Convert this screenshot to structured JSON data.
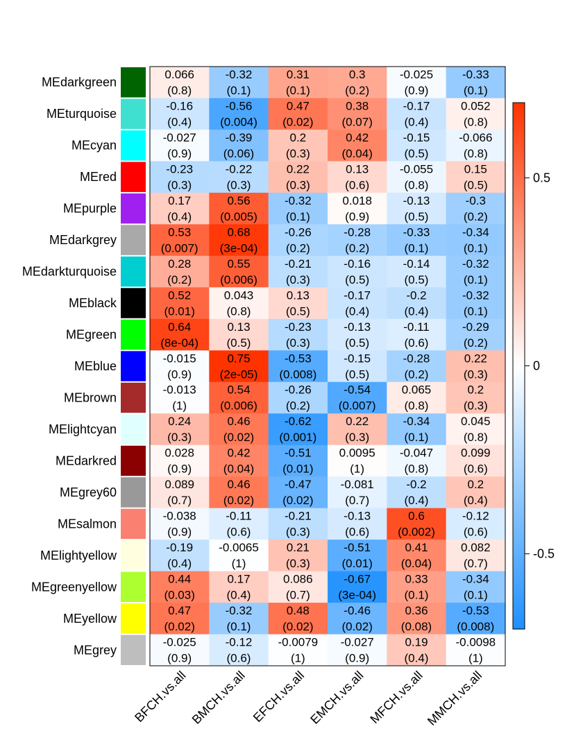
{
  "chart_data": {
    "type": "heatmap",
    "title": "",
    "xlabel": "",
    "ylabel": "",
    "columns": [
      "BFCH.vs.all",
      "BMCH.vs.all",
      "EFCH.vs.all",
      "EMCH.vs.all",
      "MFCH.vs.all",
      "MMCH.vs.all"
    ],
    "rows": [
      {
        "name": "MEdarkgreen",
        "color": "#006400",
        "values": [
          0.066,
          -0.32,
          0.31,
          0.3,
          -0.025,
          -0.33
        ],
        "labels": [
          "0.066",
          "-0.32",
          "0.31",
          "0.3",
          "-0.025",
          "-0.33"
        ],
        "pvalues": [
          "(0.8)",
          "(0.1)",
          "(0.1)",
          "(0.2)",
          "(0.9)",
          "(0.1)"
        ]
      },
      {
        "name": "MEturquoise",
        "color": "#40E0D0",
        "values": [
          -0.16,
          -0.56,
          0.47,
          0.38,
          -0.17,
          0.052
        ],
        "labels": [
          "-0.16",
          "-0.56",
          "0.47",
          "0.38",
          "-0.17",
          "0.052"
        ],
        "pvalues": [
          "(0.4)",
          "(0.004)",
          "(0.02)",
          "(0.07)",
          "(0.4)",
          "(0.8)"
        ]
      },
      {
        "name": "MEcyan",
        "color": "#00FFFF",
        "values": [
          -0.027,
          -0.39,
          0.2,
          0.42,
          -0.15,
          -0.066
        ],
        "labels": [
          "-0.027",
          "-0.39",
          "0.2",
          "0.42",
          "-0.15",
          "-0.066"
        ],
        "pvalues": [
          "(0.9)",
          "(0.06)",
          "(0.3)",
          "(0.04)",
          "(0.5)",
          "(0.8)"
        ]
      },
      {
        "name": "MEred",
        "color": "#FF0000",
        "values": [
          -0.23,
          -0.22,
          0.22,
          0.13,
          -0.055,
          0.15
        ],
        "labels": [
          "-0.23",
          "-0.22",
          "0.22",
          "0.13",
          "-0.055",
          "0.15"
        ],
        "pvalues": [
          "(0.3)",
          "(0.3)",
          "(0.3)",
          "(0.6)",
          "(0.8)",
          "(0.5)"
        ]
      },
      {
        "name": "MEpurple",
        "color": "#A020F0",
        "values": [
          0.17,
          0.56,
          -0.32,
          0.018,
          -0.13,
          -0.3
        ],
        "labels": [
          "0.17",
          "0.56",
          "-0.32",
          "0.018",
          "-0.13",
          "-0.3"
        ],
        "pvalues": [
          "(0.4)",
          "(0.005)",
          "(0.1)",
          "(0.9)",
          "(0.5)",
          "(0.2)"
        ]
      },
      {
        "name": "MEdarkgrey",
        "color": "#A9A9A9",
        "values": [
          0.53,
          0.68,
          -0.26,
          -0.28,
          -0.33,
          -0.34
        ],
        "labels": [
          "0.53",
          "0.68",
          "-0.26",
          "-0.28",
          "-0.33",
          "-0.34"
        ],
        "pvalues": [
          "(0.007)",
          "(3e-04)",
          "(0.2)",
          "(0.2)",
          "(0.1)",
          "(0.1)"
        ]
      },
      {
        "name": "MEdarkturquoise",
        "color": "#00CED1",
        "values": [
          0.28,
          0.55,
          -0.21,
          -0.16,
          -0.14,
          -0.32
        ],
        "labels": [
          "0.28",
          "0.55",
          "-0.21",
          "-0.16",
          "-0.14",
          "-0.32"
        ],
        "pvalues": [
          "(0.2)",
          "(0.006)",
          "(0.3)",
          "(0.5)",
          "(0.5)",
          "(0.1)"
        ]
      },
      {
        "name": "MEblack",
        "color": "#000000",
        "values": [
          0.52,
          0.043,
          0.13,
          -0.17,
          -0.2,
          -0.32
        ],
        "labels": [
          "0.52",
          "0.043",
          "0.13",
          "-0.17",
          "-0.2",
          "-0.32"
        ],
        "pvalues": [
          "(0.01)",
          "(0.8)",
          "(0.5)",
          "(0.4)",
          "(0.4)",
          "(0.1)"
        ]
      },
      {
        "name": "MEgreen",
        "color": "#00FF00",
        "values": [
          0.64,
          0.13,
          -0.23,
          -0.13,
          -0.11,
          -0.29
        ],
        "labels": [
          "0.64",
          "0.13",
          "-0.23",
          "-0.13",
          "-0.11",
          "-0.29"
        ],
        "pvalues": [
          "(8e-04)",
          "(0.5)",
          "(0.3)",
          "(0.5)",
          "(0.6)",
          "(0.2)"
        ]
      },
      {
        "name": "MEblue",
        "color": "#0000FF",
        "values": [
          -0.015,
          0.75,
          -0.53,
          -0.15,
          -0.28,
          0.22
        ],
        "labels": [
          "-0.015",
          "0.75",
          "-0.53",
          "-0.15",
          "-0.28",
          "0.22"
        ],
        "pvalues": [
          "(0.9)",
          "(2e-05)",
          "(0.008)",
          "(0.5)",
          "(0.2)",
          "(0.3)"
        ]
      },
      {
        "name": "MEbrown",
        "color": "#A52A2A",
        "values": [
          -0.013,
          0.54,
          -0.26,
          -0.54,
          0.065,
          0.2
        ],
        "labels": [
          "-0.013",
          "0.54",
          "-0.26",
          "-0.54",
          "0.065",
          "0.2"
        ],
        "pvalues": [
          "(1)",
          "(0.006)",
          "(0.2)",
          "(0.007)",
          "(0.8)",
          "(0.3)"
        ]
      },
      {
        "name": "MElightcyan",
        "color": "#E0FFFF",
        "values": [
          0.24,
          0.46,
          -0.62,
          0.22,
          -0.34,
          0.045
        ],
        "labels": [
          "0.24",
          "0.46",
          "-0.62",
          "0.22",
          "-0.34",
          "0.045"
        ],
        "pvalues": [
          "(0.3)",
          "(0.02)",
          "(0.001)",
          "(0.3)",
          "(0.1)",
          "(0.8)"
        ]
      },
      {
        "name": "MEdarkred",
        "color": "#8B0000",
        "values": [
          0.028,
          0.42,
          -0.51,
          0.0095,
          -0.047,
          0.099
        ],
        "labels": [
          "0.028",
          "0.42",
          "-0.51",
          "0.0095",
          "-0.047",
          "0.099"
        ],
        "pvalues": [
          "(0.9)",
          "(0.04)",
          "(0.01)",
          "(1)",
          "(0.8)",
          "(0.6)"
        ]
      },
      {
        "name": "MEgrey60",
        "color": "#999999",
        "values": [
          0.089,
          0.46,
          -0.47,
          -0.081,
          -0.2,
          0.2
        ],
        "labels": [
          "0.089",
          "0.46",
          "-0.47",
          "-0.081",
          "-0.2",
          "0.2"
        ],
        "pvalues": [
          "(0.7)",
          "(0.02)",
          "(0.02)",
          "(0.7)",
          "(0.4)",
          "(0.4)"
        ]
      },
      {
        "name": "MEsalmon",
        "color": "#FA8072",
        "values": [
          -0.038,
          -0.11,
          -0.21,
          -0.13,
          0.6,
          -0.12
        ],
        "labels": [
          "-0.038",
          "-0.11",
          "-0.21",
          "-0.13",
          "0.6",
          "-0.12"
        ],
        "pvalues": [
          "(0.9)",
          "(0.6)",
          "(0.3)",
          "(0.6)",
          "(0.002)",
          "(0.6)"
        ]
      },
      {
        "name": "MElightyellow",
        "color": "#FFFFE0",
        "values": [
          -0.19,
          -0.0065,
          0.21,
          -0.51,
          0.41,
          0.082
        ],
        "labels": [
          "-0.19",
          "-0.0065",
          "0.21",
          "-0.51",
          "0.41",
          "0.082"
        ],
        "pvalues": [
          "(0.4)",
          "(1)",
          "(0.3)",
          "(0.01)",
          "(0.04)",
          "(0.7)"
        ]
      },
      {
        "name": "MEgreenyellow",
        "color": "#ADFF2F",
        "values": [
          0.44,
          0.17,
          0.086,
          -0.67,
          0.33,
          -0.34
        ],
        "labels": [
          "0.44",
          "0.17",
          "0.086",
          "-0.67",
          "0.33",
          "-0.34"
        ],
        "pvalues": [
          "(0.03)",
          "(0.4)",
          "(0.7)",
          "(3e-04)",
          "(0.1)",
          "(0.1)"
        ]
      },
      {
        "name": "MEyellow",
        "color": "#FFFF00",
        "values": [
          0.47,
          -0.32,
          0.48,
          -0.46,
          0.36,
          -0.53
        ],
        "labels": [
          "0.47",
          "-0.32",
          "0.48",
          "-0.46",
          "0.36",
          "-0.53"
        ],
        "pvalues": [
          "(0.02)",
          "(0.1)",
          "(0.02)",
          "(0.02)",
          "(0.08)",
          "(0.008)"
        ]
      },
      {
        "name": "MEgrey",
        "color": "#BEBEBE",
        "values": [
          -0.025,
          -0.12,
          -0.0079,
          -0.027,
          0.19,
          -0.0098
        ],
        "labels": [
          "-0.025",
          "-0.12",
          "-0.0079",
          "-0.027",
          "0.19",
          "-0.0098"
        ],
        "pvalues": [
          "(0.9)",
          "(0.6)",
          "(1)",
          "(0.9)",
          "(0.4)",
          "(1)"
        ]
      }
    ],
    "color_scale": {
      "range": [
        -0.7,
        0.7
      ],
      "low_color": "#1E90FF",
      "mid_color": "#FFFFFF",
      "high_color": "#FF3300",
      "ticks": [
        -0.5,
        0,
        0.5
      ],
      "tick_labels": [
        "-0.5",
        "0",
        "0.5"
      ]
    },
    "legend": "right"
  }
}
